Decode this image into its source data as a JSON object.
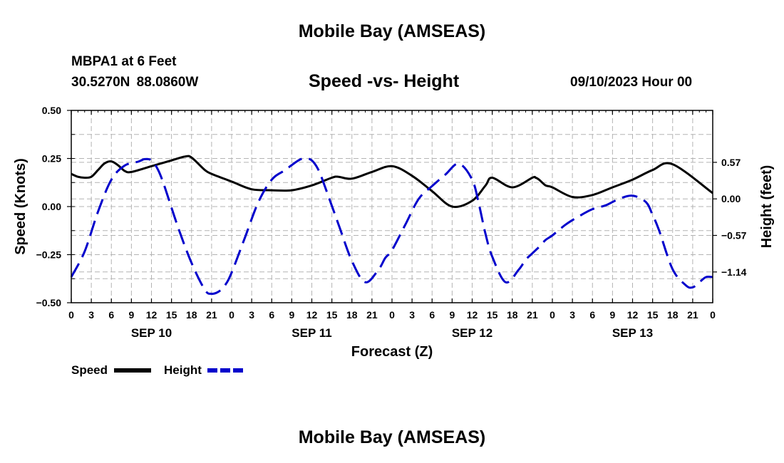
{
  "header": {
    "title": "Mobile Bay (AMSEAS)",
    "station": "MBPA1 at 6 Feet",
    "coords": "30.5270N  88.0860W",
    "subtitle": "Speed -vs- Height",
    "datetime": "09/10/2023 Hour 00"
  },
  "footer": {
    "title": "Mobile Bay (AMSEAS)"
  },
  "chart_data": {
    "type": "line",
    "title": "Speed -vs- Height",
    "xlabel": "Forecast (Z)",
    "ylabel": "Speed (Knots)",
    "y2label": "Height (feet)",
    "x_unit": "forecast hour from 09/10/2023 Hour 00",
    "xlim": [
      0,
      96
    ],
    "ylim": [
      -0.5,
      0.5
    ],
    "y2lim": [
      -1.62,
      1.38
    ],
    "grid": true,
    "legend_position": "bottom-left",
    "x_tick_labels": [
      "0",
      "3",
      "6",
      "9",
      "12",
      "15",
      "18",
      "21",
      "0",
      "3",
      "6",
      "9",
      "12",
      "15",
      "18",
      "21",
      "0",
      "3",
      "6",
      "9",
      "12",
      "15",
      "18",
      "21",
      "0",
      "3",
      "6",
      "9",
      "12",
      "15",
      "18",
      "21",
      "0"
    ],
    "date_labels": [
      {
        "label": "SEP 10",
        "hour": 12
      },
      {
        "label": "SEP 11",
        "hour": 36
      },
      {
        "label": "SEP 12",
        "hour": 60
      },
      {
        "label": "SEP 13",
        "hour": 84
      }
    ],
    "y_ticks": [
      "0.50",
      "0.25",
      "0.00",
      "−0.25",
      "−0.50"
    ],
    "y_tick_values": [
      0.5,
      0.25,
      0,
      -0.25,
      -0.5
    ],
    "y2_ticks": [
      "0.57",
      "0.00",
      "−0.57",
      "−1.14"
    ],
    "y2_tick_values": [
      0.57,
      0,
      -0.57,
      -1.14
    ],
    "series": [
      {
        "name": "Speed",
        "axis": "left",
        "color": "#000000",
        "dash": false,
        "x": [
          0,
          1,
          2,
          3,
          4,
          5,
          6,
          7,
          8,
          9,
          12,
          15,
          17,
          18,
          20,
          21,
          24,
          27,
          30,
          33,
          36,
          39,
          40,
          42,
          45,
          48,
          51,
          54,
          57,
          60,
          62,
          63,
          66,
          69,
          69.5,
          70,
          71,
          72,
          75,
          78,
          81,
          84,
          87,
          90,
          96
        ],
        "y": [
          0.17,
          0.155,
          0.15,
          0.155,
          0.19,
          0.225,
          0.235,
          0.215,
          0.185,
          0.18,
          0.21,
          0.24,
          0.26,
          0.255,
          0.19,
          0.17,
          0.13,
          0.09,
          0.085,
          0.085,
          0.11,
          0.15,
          0.155,
          0.145,
          0.18,
          0.21,
          0.16,
          0.08,
          0.0,
          0.03,
          0.11,
          0.15,
          0.1,
          0.15,
          0.15,
          0.14,
          0.11,
          0.1,
          0.05,
          0.06,
          0.1,
          0.14,
          0.19,
          0.22,
          0.07
        ]
      },
      {
        "name": "Height",
        "axis": "right",
        "color": "#0000cc",
        "dash": true,
        "x": [
          0,
          2,
          4,
          6,
          8,
          10,
          11,
          12,
          13,
          14,
          16,
          18,
          20,
          21,
          22,
          23,
          24,
          26,
          28,
          30,
          32,
          34,
          35,
          36,
          37,
          38,
          40,
          42,
          44,
          46,
          47,
          48,
          50,
          52,
          54,
          56,
          58,
          60,
          61,
          62,
          63,
          65,
          67,
          68,
          69,
          70,
          71,
          72,
          74,
          76,
          78,
          80,
          82,
          84,
          86,
          87,
          88,
          90,
          92,
          93,
          94,
          95,
          96
        ],
        "y": [
          -1.22,
          -0.82,
          -0.2,
          0.3,
          0.52,
          0.58,
          0.62,
          0.6,
          0.45,
          0.18,
          -0.45,
          -1.0,
          -1.42,
          -1.48,
          -1.45,
          -1.35,
          -1.15,
          -0.6,
          -0.05,
          0.3,
          0.45,
          0.6,
          0.63,
          0.6,
          0.45,
          0.18,
          -0.4,
          -0.97,
          -1.3,
          -1.1,
          -0.92,
          -0.8,
          -0.4,
          0.0,
          0.2,
          0.38,
          0.55,
          0.3,
          -0.08,
          -0.55,
          -0.9,
          -1.3,
          -1.1,
          -0.95,
          -0.85,
          -0.75,
          -0.64,
          -0.57,
          -0.4,
          -0.27,
          -0.16,
          -0.1,
          0.0,
          0.05,
          -0.05,
          -0.25,
          -0.5,
          -1.1,
          -1.35,
          -1.38,
          -1.3,
          -1.22,
          -1.22
        ]
      }
    ],
    "legend": [
      {
        "label": "Speed",
        "color": "#000000",
        "dash": false
      },
      {
        "label": "Height",
        "color": "#0000cc",
        "dash": true
      }
    ]
  }
}
